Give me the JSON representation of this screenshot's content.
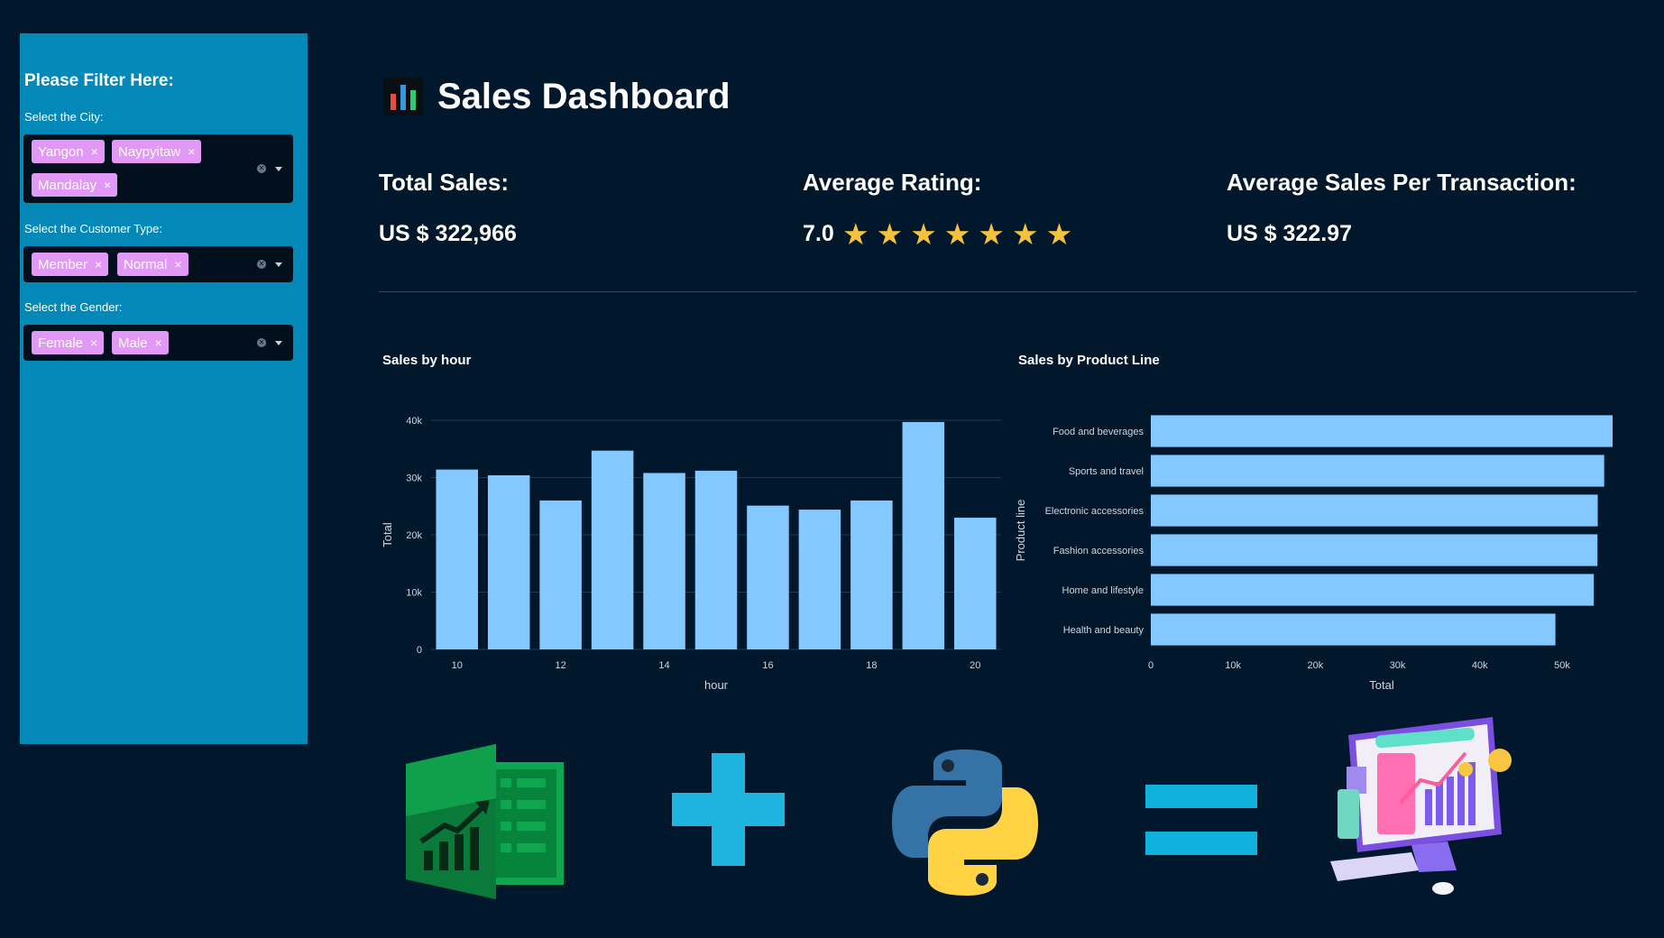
{
  "sidebar": {
    "title": "Please Filter Here:",
    "city": {
      "label": "Select the City:",
      "tags": [
        "Yangon",
        "Naypyitaw",
        "Mandalay"
      ]
    },
    "customer_type": {
      "label": "Select the Customer Type:",
      "tags": [
        "Member",
        "Normal"
      ]
    },
    "gender": {
      "label": "Select the Gender:",
      "tags": [
        "Female",
        "Male"
      ]
    },
    "remove_symbol": "×"
  },
  "header": {
    "icon": "bar-chart-icon",
    "title": "Sales Dashboard"
  },
  "kpis": {
    "total_sales": {
      "label": "Total Sales:",
      "value": "US $ 322,966"
    },
    "avg_rating": {
      "label": "Average Rating:",
      "value": "7.0",
      "stars": 7,
      "star_glyph": "★",
      "star_color": "#f5c33b"
    },
    "avg_sale": {
      "label": "Average Sales Per Transaction:",
      "value": "US $ 322.97"
    }
  },
  "colors": {
    "background": "#01172b",
    "sidebar": "#0388b8",
    "tag": "#e199f5",
    "bar": "#83c9ff"
  },
  "chart_data": [
    {
      "type": "bar",
      "title": "Sales by hour",
      "xlabel": "hour",
      "ylabel": "Total",
      "x": [
        10,
        11,
        12,
        13,
        14,
        15,
        16,
        17,
        18,
        19,
        20
      ],
      "values": [
        31400,
        30400,
        26000,
        34700,
        30800,
        31200,
        25100,
        24400,
        26000,
        39700,
        23000
      ],
      "xticks": [
        "10",
        "12",
        "14",
        "16",
        "18",
        "20"
      ],
      "xtick_values": [
        10,
        12,
        14,
        16,
        18,
        20
      ],
      "yticks": [
        "0",
        "10k",
        "20k",
        "30k",
        "40k"
      ],
      "ytick_values": [
        0,
        10000,
        20000,
        30000,
        40000
      ],
      "ylim": [
        0,
        40000
      ],
      "grid": true
    },
    {
      "type": "bar",
      "orientation": "horizontal",
      "title": "Sales by Product Line",
      "xlabel": "Total",
      "ylabel": "Product line",
      "categories": [
        "Food and beverages",
        "Sports and travel",
        "Electronic accessories",
        "Fashion accessories",
        "Home and lifestyle",
        "Health and beauty"
      ],
      "values": [
        56145,
        55123,
        54338,
        54306,
        53862,
        49194
      ],
      "xticks": [
        "0",
        "10k",
        "20k",
        "30k",
        "40k",
        "50k"
      ],
      "xtick_values": [
        0,
        10000,
        20000,
        30000,
        40000,
        50000
      ],
      "xlim": [
        0,
        56145
      ],
      "grid": false
    }
  ],
  "equation": {
    "items": [
      "excel-logo",
      "plus-sign",
      "python-logo",
      "equals-sign",
      "dashboard-illustration"
    ]
  }
}
